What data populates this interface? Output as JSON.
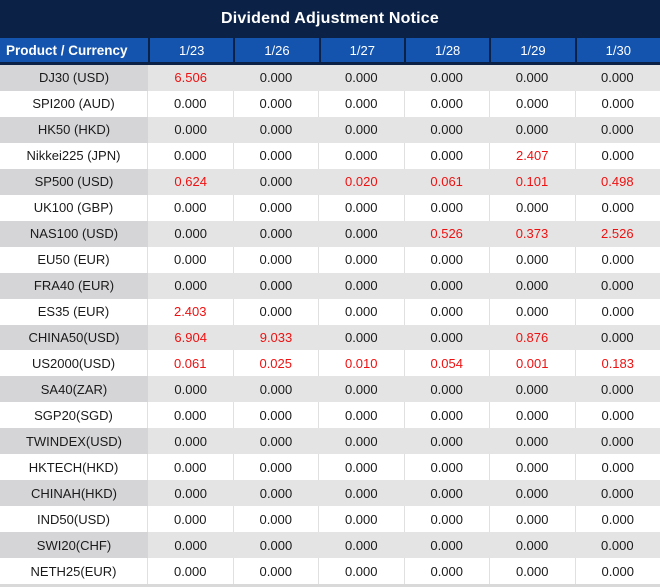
{
  "title": "Dividend Adjustment Notice",
  "table": {
    "header": {
      "product_label": "Product / Currency",
      "dates": [
        "1/23",
        "1/26",
        "1/27",
        "1/28",
        "1/29",
        "1/30"
      ]
    },
    "rows": [
      {
        "product": "DJ30 (USD)",
        "values": [
          "6.506",
          "0.000",
          "0.000",
          "0.000",
          "0.000",
          "0.000"
        ],
        "red": [
          true,
          false,
          false,
          false,
          false,
          false
        ]
      },
      {
        "product": "SPI200 (AUD)",
        "values": [
          "0.000",
          "0.000",
          "0.000",
          "0.000",
          "0.000",
          "0.000"
        ],
        "red": [
          false,
          false,
          false,
          false,
          false,
          false
        ]
      },
      {
        "product": "HK50 (HKD)",
        "values": [
          "0.000",
          "0.000",
          "0.000",
          "0.000",
          "0.000",
          "0.000"
        ],
        "red": [
          false,
          false,
          false,
          false,
          false,
          false
        ]
      },
      {
        "product": "Nikkei225 (JPN)",
        "values": [
          "0.000",
          "0.000",
          "0.000",
          "0.000",
          "2.407",
          "0.000"
        ],
        "red": [
          false,
          false,
          false,
          false,
          true,
          false
        ]
      },
      {
        "product": "SP500 (USD)",
        "values": [
          "0.624",
          "0.000",
          "0.020",
          "0.061",
          "0.101",
          "0.498"
        ],
        "red": [
          true,
          false,
          true,
          true,
          true,
          true
        ]
      },
      {
        "product": "UK100 (GBP)",
        "values": [
          "0.000",
          "0.000",
          "0.000",
          "0.000",
          "0.000",
          "0.000"
        ],
        "red": [
          false,
          false,
          false,
          false,
          false,
          false
        ]
      },
      {
        "product": "NAS100 (USD)",
        "values": [
          "0.000",
          "0.000",
          "0.000",
          "0.526",
          "0.373",
          "2.526"
        ],
        "red": [
          false,
          false,
          false,
          true,
          true,
          true
        ]
      },
      {
        "product": "EU50 (EUR)",
        "values": [
          "0.000",
          "0.000",
          "0.000",
          "0.000",
          "0.000",
          "0.000"
        ],
        "red": [
          false,
          false,
          false,
          false,
          false,
          false
        ]
      },
      {
        "product": "FRA40 (EUR)",
        "values": [
          "0.000",
          "0.000",
          "0.000",
          "0.000",
          "0.000",
          "0.000"
        ],
        "red": [
          false,
          false,
          false,
          false,
          false,
          false
        ]
      },
      {
        "product": "ES35 (EUR)",
        "values": [
          "2.403",
          "0.000",
          "0.000",
          "0.000",
          "0.000",
          "0.000"
        ],
        "red": [
          true,
          false,
          false,
          false,
          false,
          false
        ]
      },
      {
        "product": "CHINA50(USD)",
        "values": [
          "6.904",
          "9.033",
          "0.000",
          "0.000",
          "0.876",
          "0.000"
        ],
        "red": [
          true,
          true,
          false,
          false,
          true,
          false
        ]
      },
      {
        "product": "US2000(USD)",
        "values": [
          "0.061",
          "0.025",
          "0.010",
          "0.054",
          "0.001",
          "0.183"
        ],
        "red": [
          true,
          true,
          true,
          true,
          true,
          true
        ]
      },
      {
        "product": "SA40(ZAR)",
        "values": [
          "0.000",
          "0.000",
          "0.000",
          "0.000",
          "0.000",
          "0.000"
        ],
        "red": [
          false,
          false,
          false,
          false,
          false,
          false
        ]
      },
      {
        "product": "SGP20(SGD)",
        "values": [
          "0.000",
          "0.000",
          "0.000",
          "0.000",
          "0.000",
          "0.000"
        ],
        "red": [
          false,
          false,
          false,
          false,
          false,
          false
        ]
      },
      {
        "product": "TWINDEX(USD)",
        "values": [
          "0.000",
          "0.000",
          "0.000",
          "0.000",
          "0.000",
          "0.000"
        ],
        "red": [
          false,
          false,
          false,
          false,
          false,
          false
        ]
      },
      {
        "product": "HKTECH(HKD)",
        "values": [
          "0.000",
          "0.000",
          "0.000",
          "0.000",
          "0.000",
          "0.000"
        ],
        "red": [
          false,
          false,
          false,
          false,
          false,
          false
        ]
      },
      {
        "product": "CHINAH(HKD)",
        "values": [
          "0.000",
          "0.000",
          "0.000",
          "0.000",
          "0.000",
          "0.000"
        ],
        "red": [
          false,
          false,
          false,
          false,
          false,
          false
        ]
      },
      {
        "product": "IND50(USD)",
        "values": [
          "0.000",
          "0.000",
          "0.000",
          "0.000",
          "0.000",
          "0.000"
        ],
        "red": [
          false,
          false,
          false,
          false,
          false,
          false
        ]
      },
      {
        "product": "SWI20(CHF)",
        "values": [
          "0.000",
          "0.000",
          "0.000",
          "0.000",
          "0.000",
          "0.000"
        ],
        "red": [
          false,
          false,
          false,
          false,
          false,
          false
        ]
      },
      {
        "product": "NETH25(EUR)",
        "values": [
          "0.000",
          "0.000",
          "0.000",
          "0.000",
          "0.000",
          "0.000"
        ],
        "red": [
          false,
          false,
          false,
          false,
          false,
          false
        ]
      }
    ]
  },
  "colors": {
    "navy": "#0b2145",
    "header_blue": "#1454ae",
    "red": "#ee1111",
    "row_gray": "#e4e4e4",
    "product_gray": "#d5d5d8",
    "border_light": "#e0e0e0",
    "bottom_strip": "#d9d9d9",
    "text": "#1a1a1a",
    "header_text": "#ffffff"
  }
}
